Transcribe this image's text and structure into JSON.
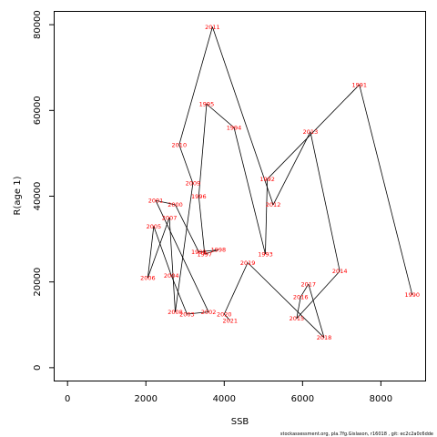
{
  "chart_data": {
    "type": "scatter",
    "connected": true,
    "xlabel": "SSB",
    "ylabel": "R(age 1)",
    "xlim": [
      -330,
      9130
    ],
    "ylim": [
      -3000,
      83000
    ],
    "xticks": [
      0,
      2000,
      4000,
      6000,
      8000
    ],
    "yticks": [
      0,
      20000,
      40000,
      60000,
      80000
    ],
    "grid": false,
    "line_color": "#000000",
    "label_color": "#ff0000",
    "points": [
      {
        "year": "1990",
        "x": 8800,
        "y": 17000
      },
      {
        "year": "1991",
        "x": 7450,
        "y": 66000
      },
      {
        "year": "1992",
        "x": 5100,
        "y": 44000
      },
      {
        "year": "1993",
        "x": 5050,
        "y": 26500
      },
      {
        "year": "1994",
        "x": 4250,
        "y": 56000
      },
      {
        "year": "1995",
        "x": 3550,
        "y": 61500
      },
      {
        "year": "1996",
        "x": 3350,
        "y": 40000
      },
      {
        "year": "1997",
        "x": 3500,
        "y": 26500
      },
      {
        "year": "1998",
        "x": 3850,
        "y": 27500
      },
      {
        "year": "1999",
        "x": 3350,
        "y": 27000
      },
      {
        "year": "2000",
        "x": 2750,
        "y": 38000
      },
      {
        "year": "2001",
        "x": 2250,
        "y": 39000
      },
      {
        "year": "2002",
        "x": 3600,
        "y": 13000
      },
      {
        "year": "2003",
        "x": 3050,
        "y": 12500
      },
      {
        "year": "2004",
        "x": 2650,
        "y": 21500
      },
      {
        "year": "2005",
        "x": 2200,
        "y": 33000
      },
      {
        "year": "2006",
        "x": 2050,
        "y": 21000
      },
      {
        "year": "2007",
        "x": 2600,
        "y": 35000
      },
      {
        "year": "2008",
        "x": 2750,
        "y": 13000
      },
      {
        "year": "2009",
        "x": 3200,
        "y": 43000
      },
      {
        "year": "2010",
        "x": 2850,
        "y": 52000
      },
      {
        "year": "2011",
        "x": 3700,
        "y": 79500
      },
      {
        "year": "2012",
        "x": 5250,
        "y": 38000
      },
      {
        "year": "2013",
        "x": 6200,
        "y": 55000
      },
      {
        "year": "2014",
        "x": 6950,
        "y": 22500
      },
      {
        "year": "2015",
        "x": 5850,
        "y": 11500
      },
      {
        "year": "2016",
        "x": 5950,
        "y": 16500
      },
      {
        "year": "2017",
        "x": 6150,
        "y": 19500
      },
      {
        "year": "2018",
        "x": 6550,
        "y": 7000
      },
      {
        "year": "2019",
        "x": 4600,
        "y": 24500
      },
      {
        "year": "2020",
        "x": 4000,
        "y": 12500
      },
      {
        "year": "2021",
        "x": 4150,
        "y": 11000
      }
    ]
  },
  "footer": {
    "credit": "stockassessment.org, pla.7fg.Gislason, r16018 , git: ec2c2a0c6dde"
  }
}
